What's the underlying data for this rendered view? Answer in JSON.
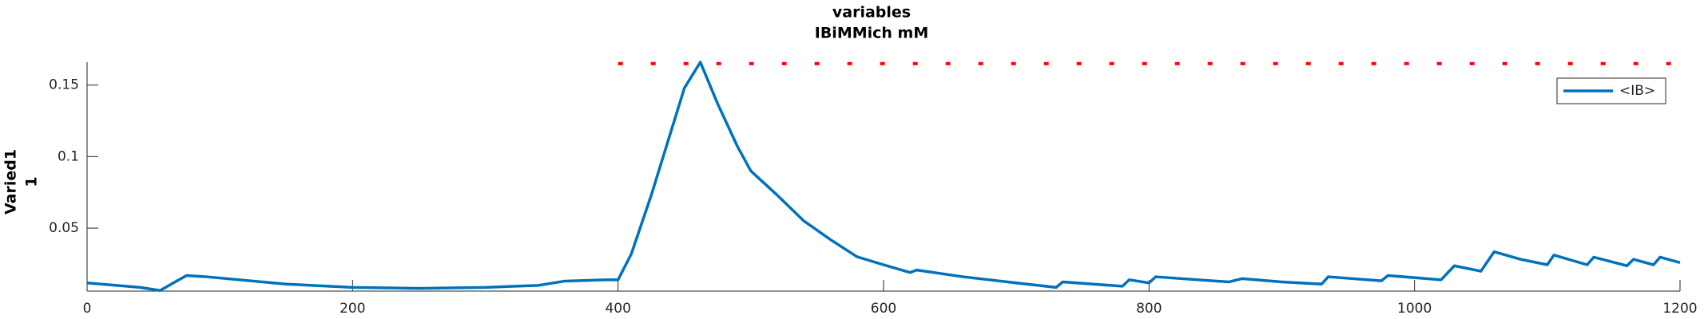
{
  "chart_data": {
    "type": "line",
    "title": [
      "variables",
      "IBiMMich mM"
    ],
    "y_label": [
      "Varied1",
      "1"
    ],
    "xlim": [
      0,
      1200
    ],
    "xticks": [
      0,
      200,
      400,
      600,
      800,
      1000,
      1200
    ],
    "ylim": [
      0.006,
      0.166
    ],
    "yticks": [
      0.05,
      0.1,
      0.15
    ],
    "legend": "upper right",
    "series": [
      {
        "name": "<IB>",
        "color": "#0072bd",
        "linestyle": "solid",
        "x": [
          0,
          40,
          55,
          65,
          75,
          90,
          150,
          200,
          250,
          300,
          340,
          360,
          390,
          400,
          410,
          425,
          440,
          450,
          462,
          475,
          490,
          500,
          520,
          540,
          560,
          580,
          600,
          620,
          625,
          660,
          700,
          730,
          735,
          780,
          785,
          800,
          805,
          860,
          870,
          900,
          930,
          935,
          975,
          980,
          1020,
          1030,
          1050,
          1060,
          1080,
          1100,
          1105,
          1130,
          1135,
          1160,
          1165,
          1180,
          1185,
          1200
        ],
        "values": [
          0.0117,
          0.0086,
          0.0064,
          0.0117,
          0.0169,
          0.016,
          0.0109,
          0.0086,
          0.0079,
          0.0086,
          0.01,
          0.013,
          0.0139,
          0.0139,
          0.032,
          0.073,
          0.118,
          0.148,
          0.166,
          0.137,
          0.107,
          0.09,
          0.073,
          0.055,
          0.042,
          0.03,
          0.0244,
          0.019,
          0.0207,
          0.016,
          0.0117,
          0.0086,
          0.0124,
          0.0094,
          0.0139,
          0.0117,
          0.016,
          0.0124,
          0.0147,
          0.0124,
          0.0109,
          0.016,
          0.0132,
          0.0169,
          0.0139,
          0.0237,
          0.0199,
          0.0335,
          0.0282,
          0.0244,
          0.0312,
          0.0244,
          0.0297,
          0.0237,
          0.0282,
          0.0244,
          0.0297,
          0.0259
        ]
      },
      {
        "color": "#ff0000",
        "linestyle": "dotted",
        "x": [
          400,
          1200
        ],
        "values": [
          0.165,
          0.165
        ]
      }
    ]
  }
}
